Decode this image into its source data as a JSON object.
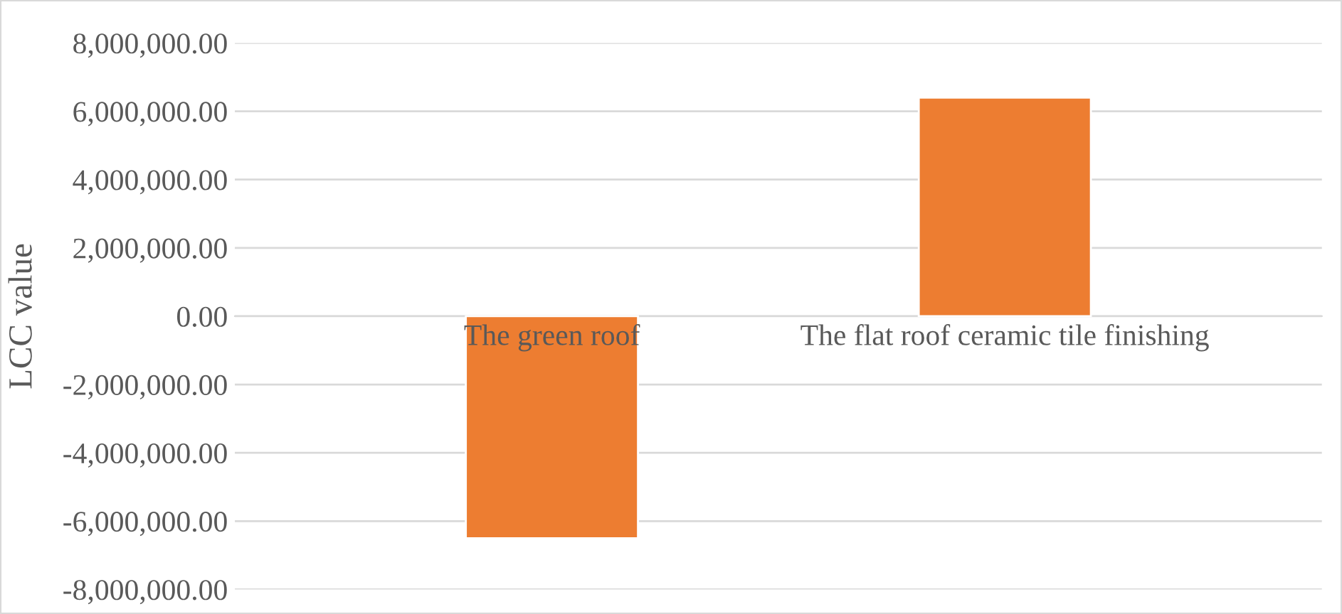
{
  "chart_data": {
    "type": "bar",
    "ylabel": "LCC value",
    "categories": [
      "The green roof",
      "The flat roof ceramic tile finishing"
    ],
    "values": [
      -6500000,
      6400000
    ],
    "color": "#ed7d31",
    "ylim": [
      -8000000,
      8000000
    ],
    "yticks": [
      {
        "value": -8000000,
        "label": "-8,000,000.00"
      },
      {
        "value": -6000000,
        "label": "-6,000,000.00"
      },
      {
        "value": -4000000,
        "label": "-4,000,000.00"
      },
      {
        "value": -2000000,
        "label": "-2,000,000.00"
      },
      {
        "value": 0,
        "label": "0.00"
      },
      {
        "value": 2000000,
        "label": "2,000,000.00"
      },
      {
        "value": 4000000,
        "label": "4,000,000.00"
      },
      {
        "value": 6000000,
        "label": "6,000,000.00"
      },
      {
        "value": 8000000,
        "label": "8,000,000.00"
      }
    ],
    "grid": "y"
  }
}
